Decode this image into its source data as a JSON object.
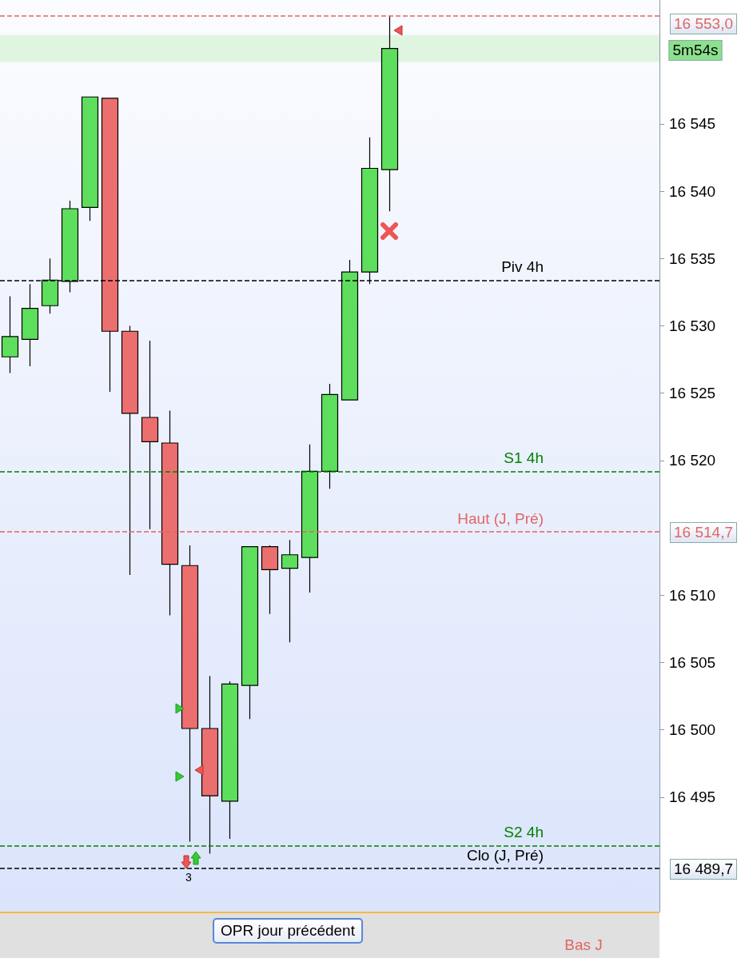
{
  "chart_data": {
    "type": "candlestick",
    "categories": [
      null,
      null,
      null,
      null,
      null,
      null,
      null,
      null,
      null,
      null,
      null,
      null,
      null,
      null,
      null,
      null,
      null,
      null,
      null,
      null,
      null,
      null,
      null,
      null,
      null,
      null,
      null,
      null,
      null,
      null,
      null,
      null,
      null
    ],
    "ohlc": [
      [
        16527.7,
        16532.2,
        16526.5,
        16529.2
      ],
      [
        16529.0,
        16533.1,
        16527.0,
        16531.3
      ],
      [
        16531.5,
        16535.0,
        16530.9,
        16533.4
      ],
      [
        16533.3,
        16539.3,
        16532.5,
        16538.7
      ],
      [
        16538.8,
        16547.0,
        16537.8,
        16547.0
      ],
      [
        16546.9,
        16546.9,
        16525.1,
        16529.6
      ],
      [
        16529.6,
        16530.0,
        16511.5,
        16523.5
      ],
      [
        16523.2,
        16528.9,
        16514.9,
        16521.4
      ],
      [
        16521.3,
        16523.7,
        16508.5,
        16512.3
      ],
      [
        16512.2,
        16513.7,
        16491.7,
        16500.1
      ],
      [
        16500.1,
        16504.0,
        16490.8,
        16495.1
      ],
      [
        16494.7,
        16503.6,
        16491.9,
        16503.4
      ],
      [
        16503.3,
        16513.6,
        16500.8,
        16513.6
      ],
      [
        16513.6,
        16513.7,
        16508.6,
        16511.9
      ],
      [
        16512.0,
        16514.1,
        16506.5,
        16513.0
      ],
      [
        16512.8,
        16521.2,
        16510.2,
        16519.2
      ],
      [
        16519.2,
        16525.7,
        16517.9,
        16524.9
      ],
      [
        16524.5,
        16534.9,
        16524.5,
        16534.0
      ],
      [
        16534.0,
        16544.0,
        16533.1,
        16541.7
      ],
      [
        16541.6,
        16553.0,
        16538.5,
        16550.6
      ],
      null,
      null,
      null,
      null,
      null,
      null,
      null,
      null,
      null,
      null,
      null,
      null,
      null
    ],
    "ylim": [
      16486.5,
      16554.2
    ],
    "yticks": [
      16495,
      16500,
      16505,
      16510,
      16520,
      16525,
      16530,
      16535,
      16540,
      16545
    ],
    "grid": false,
    "ref_lines": [
      {
        "axis": "y",
        "value": 16553.0,
        "label": null,
        "color": "#e06666",
        "line_style": "dashed"
      },
      {
        "axis": "y",
        "value": 16533.4,
        "label": "Piv 4h",
        "color": "#000000",
        "line_style": "dashed"
      },
      {
        "axis": "y",
        "value": 16519.2,
        "label": "S1 4h",
        "color": "#008000",
        "line_style": "dashed"
      },
      {
        "axis": "y",
        "value": 16514.7,
        "label": "Haut (J, Pré)",
        "color": "#e06666",
        "line_style": "dashed"
      },
      {
        "axis": "y",
        "value": 16491.4,
        "label": "S2 4h",
        "color": "#008000",
        "line_style": "dashed"
      },
      {
        "axis": "y",
        "value": 16489.7,
        "label": "Clo (J, Pré)",
        "color": "#000000",
        "line_style": "dashed"
      }
    ],
    "bands": [
      {
        "axis": "y",
        "from": 16549.6,
        "to": 16551.6,
        "color": "#e0f5e0"
      }
    ],
    "annotations": [
      "16 553,0",
      "5m54s",
      "16 514,7",
      "16 489,7",
      "OPR jour précédent",
      "Bas J",
      "3"
    ]
  }
}
